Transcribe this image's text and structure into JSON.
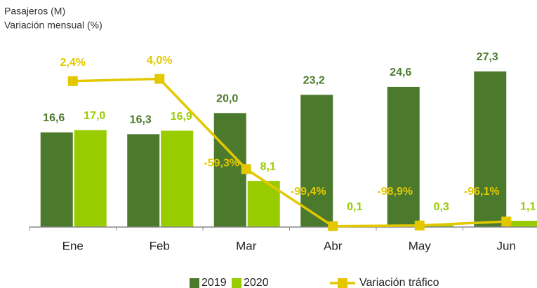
{
  "chart_data": {
    "type": "bar_line",
    "y_label": "Pasajeros (M)",
    "y2_label": "Variación mensual (%)",
    "categories": [
      "Ene",
      "Feb",
      "Mar",
      "Abr",
      "May",
      "Jun"
    ],
    "ylim": [
      0,
      30
    ],
    "y2lim": [
      -100,
      20
    ],
    "legend": "bottom",
    "series": [
      {
        "name": "2019",
        "color": "#4b7a2c",
        "type": "bar",
        "values": [
          16.6,
          16.3,
          20.0,
          23.2,
          24.6,
          27.3
        ],
        "value_labels": [
          "16,6",
          "16,3",
          "20,0",
          "23,2",
          "24,6",
          "27,3"
        ]
      },
      {
        "name": "2020",
        "color": "#99cc00",
        "type": "bar",
        "values": [
          17.0,
          16.9,
          8.1,
          0.1,
          0.3,
          1.1
        ],
        "value_labels": [
          "17,0",
          "16,9",
          "8,1",
          "0,1",
          "0,3",
          "1,1"
        ]
      },
      {
        "name": "Variación tráfico",
        "color": "#e3c800",
        "type": "line",
        "axis": "y2",
        "values": [
          2.4,
          4.0,
          -59.3,
          -99.4,
          -98.9,
          -96.1
        ],
        "value_labels": [
          "2,4%",
          "4,0%",
          "-59,3%",
          "-99,4%",
          "-98,9%",
          "-96,1%"
        ]
      }
    ]
  }
}
